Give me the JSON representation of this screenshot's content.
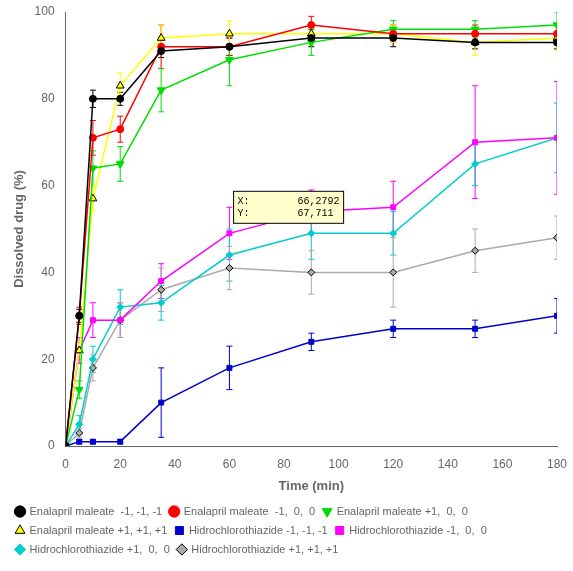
{
  "chart_data": {
    "type": "line",
    "x_label": "Time (min)",
    "y_label": "Dissolved drug (%)",
    "xlim": [
      0,
      180
    ],
    "ylim": [
      0,
      100
    ],
    "xticks": [
      0,
      20,
      40,
      60,
      80,
      100,
      120,
      140,
      160,
      180
    ],
    "yticks": [
      0,
      20,
      40,
      60,
      80,
      100
    ],
    "grid": false,
    "legend": "bottom",
    "x": [
      0,
      5,
      10,
      20,
      35,
      60,
      90,
      120,
      150,
      180
    ],
    "annotations": [
      {
        "text": "X:        66,2792\nY:        67,711",
        "x": 63,
        "y": 55,
        "color": "#ffffcc"
      }
    ],
    "series": [
      {
        "name": "Enalapril maleate  -1, -1, -1",
        "color": "#000000",
        "marker": "circle",
        "values": [
          0,
          30,
          80,
          80,
          91,
          92,
          94,
          94,
          93,
          93
        ],
        "errors": [
          0,
          1.5,
          2,
          1.5,
          1.5,
          2,
          2,
          2,
          1.5,
          1.5
        ]
      },
      {
        "name": "Enalapril maleate  -1,  0,  0",
        "color": "#ff0000",
        "marker": "circle",
        "values": [
          0,
          30,
          71,
          73,
          92,
          92,
          97,
          95,
          95,
          95
        ],
        "errors": [
          0,
          2,
          4,
          3,
          5,
          2,
          2,
          2,
          2,
          2
        ]
      },
      {
        "name": "Enalapril maleate +1,  0,  0",
        "color": "#00dd00",
        "marker": "triangle-down",
        "values": [
          0,
          13,
          64,
          65,
          82,
          89,
          93,
          96,
          96,
          97
        ],
        "errors": [
          0,
          2,
          4,
          4,
          5,
          6,
          3,
          2,
          2,
          3
        ]
      },
      {
        "name": "Enalapril maleate +1, +1, +1",
        "color": "#ffff00",
        "marker": "triangle",
        "values": [
          0,
          22,
          57,
          83,
          94,
          95,
          95,
          95,
          93,
          94
        ],
        "errors": [
          0,
          2,
          3,
          3,
          3,
          3,
          2,
          2,
          3,
          3
        ]
      },
      {
        "name": "Hidrochlorothiazide -1, -1, -1",
        "color": "#0000cc",
        "marker": "square",
        "values": [
          0,
          1,
          1,
          1,
          10,
          18,
          24,
          27,
          27,
          30
        ],
        "errors": [
          0,
          0.5,
          0.5,
          0.5,
          8,
          5,
          2,
          2,
          2,
          4
        ]
      },
      {
        "name": "Hidrochlorothiazide -1,  0,  0",
        "color": "#ff00ff",
        "marker": "square",
        "values": [
          0,
          22,
          29,
          29,
          38,
          49,
          54,
          55,
          70,
          71
        ],
        "errors": [
          0,
          3,
          4,
          4,
          4,
          6,
          5,
          6,
          13,
          13
        ]
      },
      {
        "name": "Hidrochlorothiazide +1,  0,  0",
        "color": "#00cccc",
        "marker": "diamond",
        "values": [
          0,
          5,
          20,
          32,
          33,
          44,
          49,
          49,
          65,
          71
        ],
        "errors": [
          0,
          2,
          3,
          4,
          4,
          6,
          6,
          5,
          5,
          8
        ]
      },
      {
        "name": "Hidrochlorothiazide +1, +1, +1",
        "color": "#aaaaaa",
        "marker": "diamond",
        "values": [
          0,
          3,
          18,
          29,
          36,
          41,
          40,
          40,
          45,
          48
        ],
        "errors": [
          0,
          1,
          3,
          4,
          5,
          5,
          5,
          8,
          5,
          5
        ]
      }
    ]
  }
}
